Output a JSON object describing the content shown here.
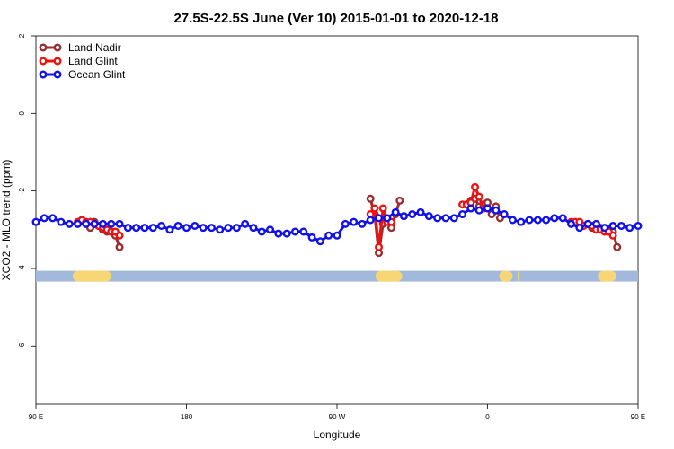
{
  "chart_data": {
    "type": "line",
    "title": "27.5S-22.5S June (Ver 10)   2015-01-01 to 2020-12-18",
    "xlabel": "Longitude",
    "ylabel": "XCO2 - MLO trend (ppm)",
    "xlim": [
      90,
      450
    ],
    "ylim": [
      -7.5,
      2.0
    ],
    "x_ticks": [
      {
        "value": 90,
        "label": "90 E"
      },
      {
        "value": 180,
        "label": "180"
      },
      {
        "value": 270,
        "label": "90 W"
      },
      {
        "value": 360,
        "label": "0"
      },
      {
        "value": 450,
        "label": "90 E"
      },
      {
        "value": 540,
        "label": "180"
      }
    ],
    "y_ticks": [
      {
        "value": 2,
        "label": "2"
      },
      {
        "value": 0,
        "label": "0"
      },
      {
        "value": -2,
        "label": "-2"
      },
      {
        "value": -4,
        "label": "-4"
      },
      {
        "value": -6,
        "label": "-6"
      }
    ],
    "legend_position": "top-left",
    "series": [
      {
        "name": "Land Nadir",
        "color": "#9b2d30",
        "segments": [
          [
            [
              117.5,
              -2.75
            ],
            [
              120,
              -2.85
            ],
            [
              122.5,
              -2.95
            ],
            [
              125,
              -2.8
            ],
            [
              127.5,
              -2.9
            ],
            [
              130,
              -3.0
            ],
            [
              132.5,
              -3.05
            ],
            [
              135,
              -3.05
            ],
            [
              137.5,
              -3.15
            ],
            [
              140,
              -3.45
            ]
          ],
          [
            [
              290,
              -2.2
            ],
            [
              292.5,
              -2.6
            ],
            [
              295,
              -3.6
            ],
            [
              297.5,
              -2.85
            ],
            [
              300,
              -2.75
            ],
            [
              302.5,
              -2.95
            ],
            [
              305,
              -2.6
            ],
            [
              307.5,
              -2.25
            ]
          ],
          [
            [
              347.5,
              -2.35
            ],
            [
              350,
              -2.25
            ],
            [
              352.5,
              -2.2
            ],
            [
              355,
              -2.4
            ],
            [
              357.5,
              -2.35
            ],
            [
              360,
              -2.3
            ],
            [
              362.5,
              -2.6
            ],
            [
              365,
              -2.4
            ],
            [
              367.5,
              -2.7
            ]
          ],
          [
            [
              422.5,
              -2.95
            ],
            [
              425,
              -2.9
            ],
            [
              427.5,
              -2.95
            ],
            [
              430,
              -3.05
            ],
            [
              432.5,
              -3.0
            ],
            [
              435,
              -3.05
            ],
            [
              437.5,
              -3.45
            ]
          ]
        ]
      },
      {
        "name": "Land Glint",
        "color": "#ee1111",
        "segments": [
          [
            [
              115,
              -2.8
            ],
            [
              117.5,
              -2.75
            ],
            [
              120,
              -2.8
            ],
            [
              122.5,
              -2.8
            ],
            [
              125,
              -2.85
            ],
            [
              127.5,
              -2.9
            ],
            [
              130,
              -2.95
            ],
            [
              132.5,
              -3.0
            ],
            [
              135,
              -3.05
            ],
            [
              137.5,
              -3.05
            ],
            [
              140,
              -3.15
            ]
          ],
          [
            [
              290,
              -2.6
            ],
            [
              292.5,
              -2.45
            ],
            [
              295,
              -3.45
            ],
            [
              297.5,
              -2.45
            ],
            [
              300,
              -2.8
            ],
            [
              302.5,
              -2.8
            ]
          ],
          [
            [
              345,
              -2.35
            ],
            [
              347.5,
              -2.35
            ],
            [
              350,
              -2.3
            ],
            [
              352.5,
              -1.9
            ],
            [
              355,
              -2.15
            ],
            [
              357.5,
              -2.45
            ]
          ],
          [
            [
              410,
              -2.8
            ],
            [
              412.5,
              -2.8
            ],
            [
              415,
              -2.8
            ],
            [
              417.5,
              -2.9
            ],
            [
              420,
              -2.85
            ],
            [
              422.5,
              -2.9
            ],
            [
              425,
              -3.0
            ],
            [
              427.5,
              -3.0
            ],
            [
              430,
              -3.05
            ],
            [
              432.5,
              -3.05
            ],
            [
              435,
              -3.15
            ]
          ]
        ]
      },
      {
        "name": "Ocean Glint",
        "color": "#1010ee",
        "segments": [
          [
            [
              90,
              -2.8
            ],
            [
              95,
              -2.7
            ],
            [
              100,
              -2.7
            ],
            [
              105,
              -2.8
            ],
            [
              110,
              -2.85
            ],
            [
              115,
              -2.85
            ],
            [
              120,
              -2.85
            ],
            [
              125,
              -2.85
            ],
            [
              130,
              -2.85
            ],
            [
              135,
              -2.85
            ],
            [
              140,
              -2.85
            ],
            [
              145,
              -2.95
            ],
            [
              150,
              -2.95
            ],
            [
              155,
              -2.95
            ],
            [
              160,
              -2.95
            ],
            [
              165,
              -2.9
            ],
            [
              170,
              -3.0
            ],
            [
              175,
              -2.9
            ],
            [
              180,
              -2.95
            ],
            [
              185,
              -2.9
            ],
            [
              190,
              -2.95
            ],
            [
              195,
              -2.95
            ],
            [
              200,
              -3.0
            ],
            [
              205,
              -2.95
            ],
            [
              210,
              -2.95
            ],
            [
              215,
              -2.85
            ],
            [
              220,
              -2.95
            ],
            [
              225,
              -3.05
            ],
            [
              230,
              -3.0
            ],
            [
              235,
              -3.1
            ],
            [
              240,
              -3.1
            ],
            [
              245,
              -3.05
            ],
            [
              250,
              -3.05
            ],
            [
              255,
              -3.2
            ],
            [
              260,
              -3.3
            ],
            [
              265,
              -3.15
            ],
            [
              270,
              -3.15
            ],
            [
              275,
              -2.85
            ],
            [
              280,
              -2.8
            ],
            [
              285,
              -2.85
            ],
            [
              290,
              -2.75
            ],
            [
              295,
              -2.7
            ],
            [
              300,
              -2.7
            ],
            [
              305,
              -2.55
            ],
            [
              310,
              -2.65
            ],
            [
              315,
              -2.6
            ],
            [
              320,
              -2.55
            ],
            [
              325,
              -2.65
            ],
            [
              330,
              -2.7
            ],
            [
              335,
              -2.7
            ],
            [
              340,
              -2.7
            ],
            [
              345,
              -2.6
            ],
            [
              350,
              -2.45
            ],
            [
              355,
              -2.5
            ],
            [
              360,
              -2.45
            ],
            [
              365,
              -2.5
            ],
            [
              370,
              -2.6
            ],
            [
              375,
              -2.75
            ],
            [
              380,
              -2.8
            ],
            [
              385,
              -2.75
            ],
            [
              390,
              -2.75
            ],
            [
              395,
              -2.75
            ],
            [
              400,
              -2.7
            ],
            [
              405,
              -2.7
            ],
            [
              410,
              -2.85
            ],
            [
              415,
              -2.95
            ],
            [
              420,
              -2.85
            ],
            [
              425,
              -2.85
            ],
            [
              430,
              -2.95
            ],
            [
              435,
              -2.9
            ],
            [
              440,
              -2.9
            ],
            [
              445,
              -2.95
            ],
            [
              450,
              -2.9
            ]
          ]
        ]
      }
    ],
    "map_strip": {
      "y_value": -4.2,
      "ocean_color": "#a3b9dc",
      "land_color": "#f7d773",
      "land_ranges": [
        [
          112,
          135
        ],
        [
          293,
          309
        ],
        [
          367,
          375
        ],
        [
          378,
          379
        ],
        [
          426,
          437
        ]
      ]
    }
  }
}
